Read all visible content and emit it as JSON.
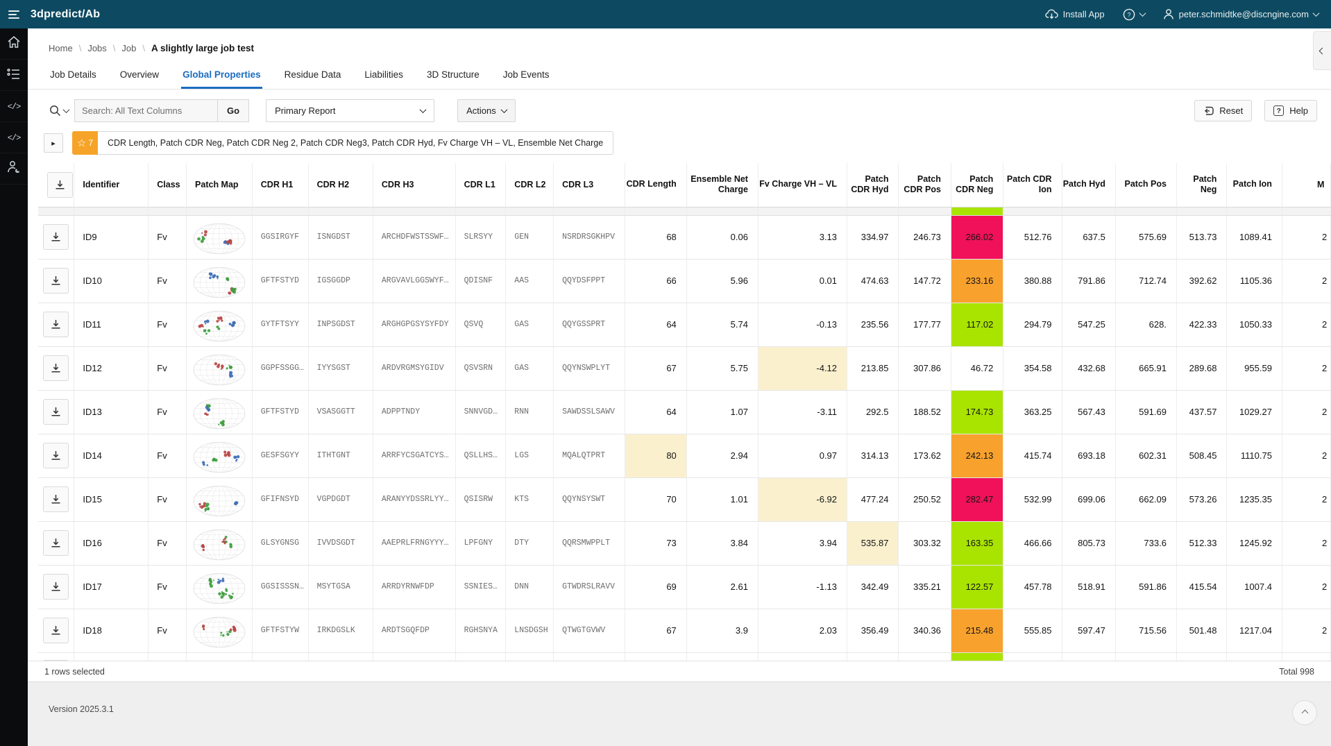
{
  "app_bar": {
    "title": "3dpredict/Ab",
    "install_app_label": "Install App",
    "user_email": "peter.schmidtke@discngine.com"
  },
  "sidebar": {
    "items": [
      {
        "icon": "home-icon"
      },
      {
        "icon": "jobs-list-icon"
      },
      {
        "icon": "code-icon"
      },
      {
        "icon": "code-icon"
      },
      {
        "icon": "user-admin-icon"
      }
    ]
  },
  "breadcrumb": {
    "items": [
      "Home",
      "Jobs",
      "Job"
    ],
    "current": "A slightly large job test"
  },
  "tabs": [
    {
      "label": "Job Details",
      "active": false
    },
    {
      "label": "Overview",
      "active": false
    },
    {
      "label": "Global Properties",
      "active": true
    },
    {
      "label": "Residue Data",
      "active": false
    },
    {
      "label": "Liabilities",
      "active": false
    },
    {
      "label": "3D Structure",
      "active": false
    },
    {
      "label": "Job Events",
      "active": false
    }
  ],
  "toolbar": {
    "search_placeholder": "Search: All Text Columns",
    "go_label": "Go",
    "report_value": "Primary Report",
    "actions_label": "Actions",
    "reset_label": "Reset",
    "help_label": "Help"
  },
  "filter_chip": {
    "count": "7",
    "text": "CDR Length, Patch CDR Neg, Patch CDR Neg 2, Patch CDR Neg3, Patch CDR Hyd, Fv Charge VH – VL, Ensemble Net Charge"
  },
  "table": {
    "columns": [
      {
        "key": "download",
        "label": "",
        "type": "icon"
      },
      {
        "key": "id",
        "label": "Identifier",
        "type": "txt"
      },
      {
        "key": "class",
        "label": "Class",
        "type": "txt"
      },
      {
        "key": "patch_map",
        "label": "Patch Map",
        "type": "map"
      },
      {
        "key": "cdr_h1",
        "label": "CDR H1",
        "type": "seq"
      },
      {
        "key": "cdr_h2",
        "label": "CDR H2",
        "type": "seq"
      },
      {
        "key": "cdr_h3",
        "label": "CDR H3",
        "type": "seq"
      },
      {
        "key": "cdr_l1",
        "label": "CDR L1",
        "type": "seq"
      },
      {
        "key": "cdr_l2",
        "label": "CDR L2",
        "type": "seq"
      },
      {
        "key": "cdr_l3",
        "label": "CDR L3",
        "type": "seq"
      },
      {
        "key": "cdr_length",
        "label": "CDR Length",
        "type": "num"
      },
      {
        "key": "ensemble_net_charge",
        "label": "Ensemble Net Charge",
        "type": "num"
      },
      {
        "key": "fv_charge",
        "label": "Fv Charge VH – VL",
        "type": "num"
      },
      {
        "key": "patch_cdr_hyd",
        "label": "Patch CDR Hyd",
        "type": "num"
      },
      {
        "key": "patch_cdr_pos",
        "label": "Patch CDR Pos",
        "type": "num"
      },
      {
        "key": "patch_cdr_neg",
        "label": "Patch CDR Neg",
        "type": "num"
      },
      {
        "key": "patch_cdr_ion",
        "label": "Patch CDR Ion",
        "type": "num"
      },
      {
        "key": "patch_hyd",
        "label": "Patch Hyd",
        "type": "num"
      },
      {
        "key": "patch_pos",
        "label": "Patch Pos",
        "type": "num"
      },
      {
        "key": "patch_neg",
        "label": "Patch Neg",
        "type": "num"
      },
      {
        "key": "patch_ion",
        "label": "Patch Ion",
        "type": "num"
      },
      {
        "key": "last",
        "label": "M",
        "type": "numcut"
      }
    ],
    "rows": [
      {
        "id": "ID9",
        "class": "Fv",
        "cdr_h1": "GGSIRGYF",
        "cdr_h2": "ISNGDST",
        "cdr_h3": "ARCHDFWSTSSWF…",
        "cdr_l1": "SLRSYY",
        "cdr_l2": "GEN",
        "cdr_l3": "NSRDRSGKHPV",
        "cdr_length": "68",
        "ensemble_net_charge": "0.06",
        "fv_charge": "3.13",
        "patch_cdr_hyd": "334.97",
        "patch_cdr_pos": "246.73",
        "patch_cdr_neg": "266.02",
        "patch_cdr_ion": "512.76",
        "patch_hyd": "637.5",
        "patch_pos": "575.69",
        "patch_neg": "513.73",
        "patch_ion": "1089.41",
        "last": "2",
        "highlights": {
          "patch_cdr_neg": "pink"
        }
      },
      {
        "id": "ID10",
        "class": "Fv",
        "cdr_h1": "GFTFSTYD",
        "cdr_h2": "IGSGGDP",
        "cdr_h3": "ARGVAVLGGSWYF…",
        "cdr_l1": "QDISNF",
        "cdr_l2": "AAS",
        "cdr_l3": "QQYDSFPPT",
        "cdr_length": "66",
        "ensemble_net_charge": "5.96",
        "fv_charge": "0.01",
        "patch_cdr_hyd": "474.63",
        "patch_cdr_pos": "147.72",
        "patch_cdr_neg": "233.16",
        "patch_cdr_ion": "380.88",
        "patch_hyd": "791.86",
        "patch_pos": "712.74",
        "patch_neg": "392.62",
        "patch_ion": "1105.36",
        "last": "2",
        "highlights": {
          "patch_cdr_neg": "orange"
        }
      },
      {
        "id": "ID11",
        "class": "Fv",
        "cdr_h1": "GYTFTSYY",
        "cdr_h2": "INPSGDST",
        "cdr_h3": "ARGHGPGSYSYFDY",
        "cdr_l1": "QSVQ",
        "cdr_l2": "GAS",
        "cdr_l3": "QQYGSSPRT",
        "cdr_length": "64",
        "ensemble_net_charge": "5.74",
        "fv_charge": "-0.13",
        "patch_cdr_hyd": "235.56",
        "patch_cdr_pos": "177.77",
        "patch_cdr_neg": "117.02",
        "patch_cdr_ion": "294.79",
        "patch_hyd": "547.25",
        "patch_pos": "628.",
        "patch_neg": "422.33",
        "patch_ion": "1050.33",
        "last": "2",
        "highlights": {
          "patch_cdr_neg": "green"
        }
      },
      {
        "id": "ID12",
        "class": "Fv",
        "cdr_h1": "GGPFSSGG…",
        "cdr_h2": "IYYSGST",
        "cdr_h3": "ARDVRGMSYGIDV",
        "cdr_l1": "QSVSRN",
        "cdr_l2": "GAS",
        "cdr_l3": "QQYNSWPLYT",
        "cdr_length": "67",
        "ensemble_net_charge": "5.75",
        "fv_charge": "-4.12",
        "patch_cdr_hyd": "213.85",
        "patch_cdr_pos": "307.86",
        "patch_cdr_neg": "46.72",
        "patch_cdr_ion": "354.58",
        "patch_hyd": "432.68",
        "patch_pos": "665.91",
        "patch_neg": "289.68",
        "patch_ion": "955.59",
        "last": "2",
        "highlights": {
          "fv_charge": "yellow"
        }
      },
      {
        "id": "ID13",
        "class": "Fv",
        "cdr_h1": "GFTFSTYD",
        "cdr_h2": "VSASGGTT",
        "cdr_h3": "ADPPTNDY",
        "cdr_l1": "SNNVGD…",
        "cdr_l2": "RNN",
        "cdr_l3": "SAWDSSLSAWV",
        "cdr_length": "64",
        "ensemble_net_charge": "1.07",
        "fv_charge": "-3.11",
        "patch_cdr_hyd": "292.5",
        "patch_cdr_pos": "188.52",
        "patch_cdr_neg": "174.73",
        "patch_cdr_ion": "363.25",
        "patch_hyd": "567.43",
        "patch_pos": "591.69",
        "patch_neg": "437.57",
        "patch_ion": "1029.27",
        "last": "2",
        "highlights": {
          "patch_cdr_neg": "green"
        }
      },
      {
        "id": "ID14",
        "class": "Fv",
        "cdr_h1": "GESFSGYY",
        "cdr_h2": "ITHTGNT",
        "cdr_h3": "ARRFYCSGATCYS…",
        "cdr_l1": "QSLLHS…",
        "cdr_l2": "LGS",
        "cdr_l3": "MQALQTPRT",
        "cdr_length": "80",
        "ensemble_net_charge": "2.94",
        "fv_charge": "0.97",
        "patch_cdr_hyd": "314.13",
        "patch_cdr_pos": "173.62",
        "patch_cdr_neg": "242.13",
        "patch_cdr_ion": "415.74",
        "patch_hyd": "693.18",
        "patch_pos": "602.31",
        "patch_neg": "508.45",
        "patch_ion": "1110.75",
        "last": "2",
        "highlights": {
          "cdr_length": "yellow",
          "patch_cdr_neg": "orange"
        }
      },
      {
        "id": "ID15",
        "class": "Fv",
        "cdr_h1": "GFIFNSYD",
        "cdr_h2": "VGPDGDT",
        "cdr_h3": "ARANYYDSSRLYY…",
        "cdr_l1": "QSISRW",
        "cdr_l2": "KTS",
        "cdr_l3": "QQYNSYSWT",
        "cdr_length": "70",
        "ensemble_net_charge": "1.01",
        "fv_charge": "-6.92",
        "patch_cdr_hyd": "477.24",
        "patch_cdr_pos": "250.52",
        "patch_cdr_neg": "282.47",
        "patch_cdr_ion": "532.99",
        "patch_hyd": "699.06",
        "patch_pos": "662.09",
        "patch_neg": "573.26",
        "patch_ion": "1235.35",
        "last": "2",
        "highlights": {
          "fv_charge": "yellow",
          "patch_cdr_neg": "pink"
        }
      },
      {
        "id": "ID16",
        "class": "Fv",
        "cdr_h1": "GLSYGNSG",
        "cdr_h2": "IVVDSGDT",
        "cdr_h3": "AAEPRLFRNGYYY…",
        "cdr_l1": "LPFGNY",
        "cdr_l2": "DTY",
        "cdr_l3": "QQRSMWPPLT",
        "cdr_length": "73",
        "ensemble_net_charge": "3.84",
        "fv_charge": "3.94",
        "patch_cdr_hyd": "535.87",
        "patch_cdr_pos": "303.32",
        "patch_cdr_neg": "163.35",
        "patch_cdr_ion": "466.66",
        "patch_hyd": "805.73",
        "patch_pos": "733.6",
        "patch_neg": "512.33",
        "patch_ion": "1245.92",
        "last": "2",
        "highlights": {
          "patch_cdr_hyd": "yellow",
          "patch_cdr_neg": "green"
        }
      },
      {
        "id": "ID17",
        "class": "Fv",
        "cdr_h1": "GGSISSSN…",
        "cdr_h2": "MSYTGSA",
        "cdr_h3": "ARRDYRNWFDP",
        "cdr_l1": "SSNIES…",
        "cdr_l2": "DNN",
        "cdr_l3": "GTWDRSLRAVV",
        "cdr_length": "69",
        "ensemble_net_charge": "2.61",
        "fv_charge": "-1.13",
        "patch_cdr_hyd": "342.49",
        "patch_cdr_pos": "335.21",
        "patch_cdr_neg": "122.57",
        "patch_cdr_ion": "457.78",
        "patch_hyd": "518.91",
        "patch_pos": "591.86",
        "patch_neg": "415.54",
        "patch_ion": "1007.4",
        "last": "2",
        "highlights": {
          "patch_cdr_neg": "green"
        }
      },
      {
        "id": "ID18",
        "class": "Fv",
        "cdr_h1": "GFTFSTYW",
        "cdr_h2": "IRKDGSLK",
        "cdr_h3": "ARDTSGQFDP",
        "cdr_l1": "RGHSNYA",
        "cdr_l2": "LNSDGSH",
        "cdr_l3": "QTWGTGVWV",
        "cdr_length": "67",
        "ensemble_net_charge": "3.9",
        "fv_charge": "2.03",
        "patch_cdr_hyd": "356.49",
        "patch_cdr_pos": "340.36",
        "patch_cdr_neg": "215.48",
        "patch_cdr_ion": "555.85",
        "patch_hyd": "597.47",
        "patch_pos": "715.56",
        "patch_neg": "501.48",
        "patch_ion": "1217.04",
        "last": "2",
        "highlights": {
          "patch_cdr_neg": "orange"
        }
      }
    ],
    "top_partial_row": {
      "patch_cdr_neg": "green"
    },
    "bottom_partial_row": {
      "patch_cdr_neg": "green"
    }
  },
  "status_bar": {
    "selected": "1 rows selected",
    "total": "Total 998"
  },
  "footer": {
    "version": "Version 2025.3.1"
  },
  "colors": {
    "topbar": "#0d4a61",
    "accent_blue": "#1a6dc1",
    "star_amber": "#f6a429",
    "cell_pink": "#f0115a",
    "cell_orange": "#f8a12d",
    "cell_green": "#a9e400",
    "cell_yellow": "#fbf0ce"
  }
}
